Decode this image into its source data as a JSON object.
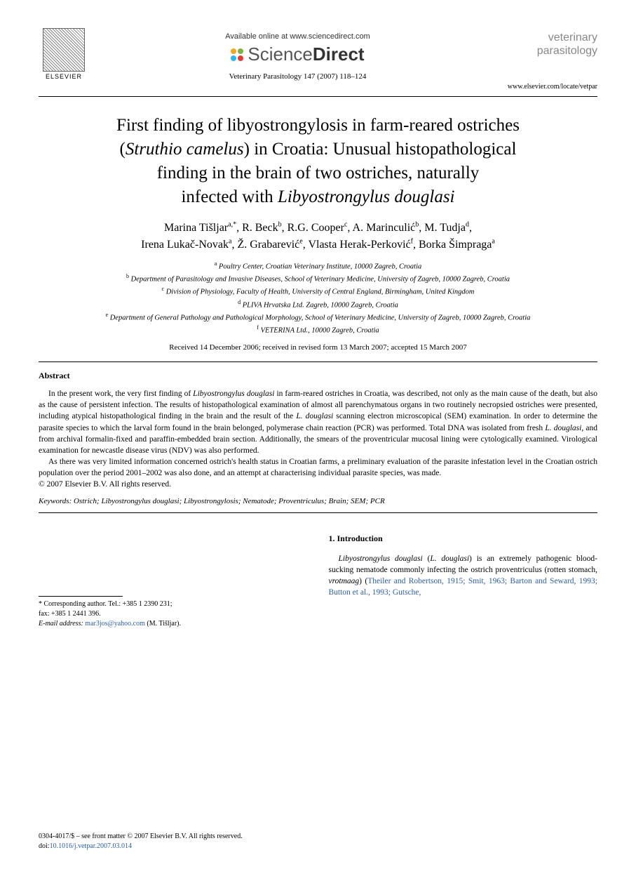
{
  "header": {
    "available_text": "Available online at www.sciencedirect.com",
    "sciencedirect": {
      "part1": "Science",
      "part2": "Direct"
    },
    "sd_dot_colors": [
      "#f5a623",
      "#7cb342",
      "#29b6f6",
      "#e53935"
    ],
    "citation": "Veterinary Parasitology 147 (2007) 118–124",
    "publisher_label": "ELSEVIER",
    "journal_name_line1": "veterinary",
    "journal_name_line2": "parasitology",
    "journal_url": "www.elsevier.com/locate/vetpar"
  },
  "title": {
    "line1": "First finding of libyostrongylosis in farm-reared ostriches",
    "line2_pre": "(",
    "line2_italic": "Struthio camelus",
    "line2_post": ") in Croatia: Unusual histopathological",
    "line3": "finding in the brain of two ostriches, naturally",
    "line4_pre": "infected with ",
    "line4_italic": "Libyostrongylus douglasi"
  },
  "authors": [
    {
      "name": "Marina Tišljar",
      "sup": "a,*"
    },
    {
      "name": "R. Beck",
      "sup": "b"
    },
    {
      "name": "R.G. Cooper",
      "sup": "c"
    },
    {
      "name": "A. Marinculić",
      "sup": "b"
    },
    {
      "name": "M. Tudja",
      "sup": "d"
    },
    {
      "name": "Irena Lukač-Novak",
      "sup": "a"
    },
    {
      "name": "Ž. Grabarević",
      "sup": "e"
    },
    {
      "name": "Vlasta Herak-Perković",
      "sup": "f"
    },
    {
      "name": "Borka Šimpraga",
      "sup": "a"
    }
  ],
  "affiliations": [
    {
      "sup": "a",
      "text": "Poultry Center, Croatian Veterinary Institute, 10000 Zagreb, Croatia"
    },
    {
      "sup": "b",
      "text": "Department of Parasitology and Invasive Diseases, School of Veterinary Medicine, University of Zagreb, 10000 Zagreb, Croatia"
    },
    {
      "sup": "c",
      "text": "Division of Physiology, Faculty of Health, University of Central England, Birmingham, United Kingdom"
    },
    {
      "sup": "d",
      "text": "PLIVA Hrvatska Ltd. Zagreb, 10000 Zagreb, Croatia"
    },
    {
      "sup": "e",
      "text": "Department of General Pathology and Pathological Morphology, School of Veterinary Medicine, University of Zagreb, 10000 Zagreb, Croatia"
    },
    {
      "sup": "f",
      "text": "VETERINA Ltd., 10000 Zagreb, Croatia"
    }
  ],
  "dates": "Received 14 December 2006; received in revised form 13 March 2007; accepted 15 March 2007",
  "abstract": {
    "heading": "Abstract",
    "p1_pre": "In the present work, the very first finding of ",
    "p1_it1": "Libyostrongylus douglasi",
    "p1_mid1": " in farm-reared ostriches in Croatia, was described, not only as the main cause of the death, but also as the cause of persistent infection. The results of histopathological examination of almost all parenchymatous organs in two routinely necropsied ostriches were presented, including atypical histopathological finding in the brain and the result of the ",
    "p1_it2": "L. douglasi",
    "p1_mid2": " scanning electron microscopical (SEM) examination. In order to determine the parasite species to which the larval form found in the brain belonged, polymerase chain reaction (PCR) was performed. Total DNA was isolated from fresh ",
    "p1_it3": "L. douglasi",
    "p1_post": ", and from archival formalin-fixed and paraffin-embedded brain section. Additionally, the smears of the proventricular mucosal lining were cytologically examined. Virological examination for newcastle disease virus (NDV) was also performed.",
    "p2": "As there was very limited information concerned ostrich's health status in Croatian farms, a preliminary evaluation of the parasite infestation level in the Croatian ostrich population over the period 2001–2002 was also done, and an attempt at characterising individual parasite species, was made.",
    "copyright": "© 2007 Elsevier B.V. All rights reserved."
  },
  "keywords": {
    "label": "Keywords:",
    "text_pre": "  Ostrich; ",
    "text_it": "Libyostrongylus douglasi",
    "text_post": "; Libyostrongylosis; Nematode; Proventriculus; Brain; SEM; PCR"
  },
  "intro": {
    "heading": "1.  Introduction",
    "p1_it1": "Libyostrongylus douglasi",
    "p1_mid1": " (",
    "p1_it2": "L. douglasi",
    "p1_mid2": ") is an extremely pathogenic blood-sucking nematode commonly infecting the ostrich proventriculus (rotten stomach, ",
    "p1_it3": "vrotmaag",
    "p1_mid3": ") (",
    "p1_link": "Theiler and Robertson, 1915; Smit, 1963; Barton and Seward, 1993; Button et al., 1993; Gutsche,"
  },
  "footnote": {
    "corr_label": "* Corresponding author. Tel.: +385 1 2390 231;",
    "fax": "fax: +385 1 2441 396.",
    "email_label": "E-mail address:",
    "email": "mar3jos@yahoo.com",
    "email_name": " (M. Tišljar)."
  },
  "footer": {
    "issn": "0304-4017/$ – see front matter © 2007 Elsevier B.V. All rights reserved.",
    "doi_label": "doi:",
    "doi": "10.1016/j.vetpar.2007.03.014"
  },
  "colors": {
    "text": "#000000",
    "link": "#2a5db0",
    "journal_gray": "#888888",
    "background": "#ffffff"
  }
}
